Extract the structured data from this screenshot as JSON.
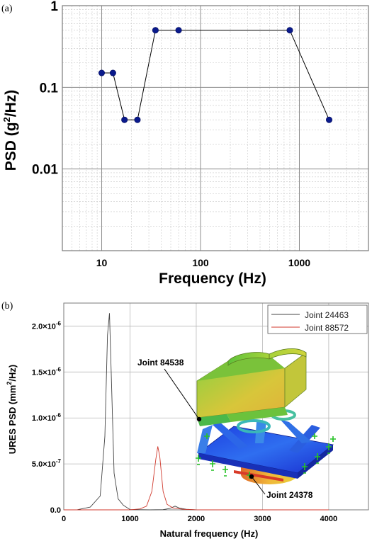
{
  "chart_data": [
    {
      "type": "line",
      "panel_label": "(a)",
      "xlabel": "Frequency (Hz)",
      "ylabel_main": "PSD (g",
      "ylabel_sup": "2",
      "ylabel_end": "/Hz)",
      "xscale": "log",
      "yscale": "log",
      "xlim": [
        4,
        5000
      ],
      "ylim": [
        0.001,
        1
      ],
      "grid": true,
      "x_ticks": [
        {
          "value": 10,
          "label": "10"
        },
        {
          "value": 100,
          "label": "100"
        },
        {
          "value": 1000,
          "label": "1000"
        }
      ],
      "y_ticks": [
        {
          "value": 1,
          "label": "1"
        },
        {
          "value": 0.1,
          "label": "0.1"
        },
        {
          "value": 0.01,
          "label": "0.01"
        }
      ],
      "series": [
        {
          "color": "#0a1a8c",
          "x": [
            10,
            13,
            17,
            23,
            35,
            60,
            800,
            2000
          ],
          "y": [
            0.15,
            0.15,
            0.04,
            0.04,
            0.5,
            0.5,
            0.5,
            0.04
          ]
        }
      ]
    },
    {
      "type": "line",
      "panel_label": "(b)",
      "xlabel": "Natural frequency (Hz)",
      "ylabel_main": "URES PSD (mm",
      "ylabel_sup": "2",
      "ylabel_end": "/Hz)",
      "xlim": [
        0,
        4600
      ],
      "ylim": [
        0,
        2.25e-06
      ],
      "grid": true,
      "legend_position": "top-right",
      "x_ticks": [
        {
          "value": 0,
          "label": "0"
        },
        {
          "value": 1000,
          "label": "1000"
        },
        {
          "value": 2000,
          "label": "2000"
        },
        {
          "value": 3000,
          "label": "3000"
        },
        {
          "value": 4000,
          "label": "4000"
        }
      ],
      "y_ticks": [
        {
          "value": 0,
          "label": "0.0"
        },
        {
          "value": 5e-07,
          "mant": "5.0×10",
          "exp": "-7"
        },
        {
          "value": 1e-06,
          "mant": "1.0×10",
          "exp": "-6"
        },
        {
          "value": 1.5e-06,
          "mant": "1.5×10",
          "exp": "-6"
        },
        {
          "value": 2e-06,
          "mant": "2.0×10",
          "exp": "-6"
        }
      ],
      "series": [
        {
          "name": "Joint 24463",
          "color": "#444444",
          "x": [
            0,
            200,
            400,
            550,
            620,
            660,
            690,
            720,
            760,
            820,
            900,
            1000,
            1300,
            1500,
            1600,
            1680,
            1750,
            1850,
            2000,
            2300,
            2600,
            3000
          ],
          "y": [
            0,
            1e-09,
            3e-08,
            1.5e-07,
            8e-07,
            1.9e-06,
            2.14e-06,
            1.4e-06,
            4e-07,
            1.2e-07,
            5e-08,
            3e-09,
            0,
            2e-09,
            1.5e-08,
            4e-08,
            1.8e-08,
            6e-09,
            1e-09,
            0,
            0,
            0
          ]
        },
        {
          "name": "Joint 88572",
          "color": "#d03a2e",
          "x": [
            0,
            500,
            800,
            1000,
            1150,
            1250,
            1330,
            1390,
            1420,
            1450,
            1500,
            1560,
            1650,
            1800,
            2000,
            2400,
            3000,
            4000
          ],
          "y": [
            0,
            0,
            0,
            1e-09,
            1e-08,
            4e-08,
            2e-07,
            5.5e-07,
            6.9e-07,
            5.8e-07,
            2e-07,
            6e-08,
            2e-08,
            6e-09,
            1e-09,
            0,
            0,
            0
          ]
        }
      ],
      "annotations": [
        {
          "label": "Joint 84538"
        },
        {
          "label": "Joint 24378"
        }
      ]
    }
  ]
}
